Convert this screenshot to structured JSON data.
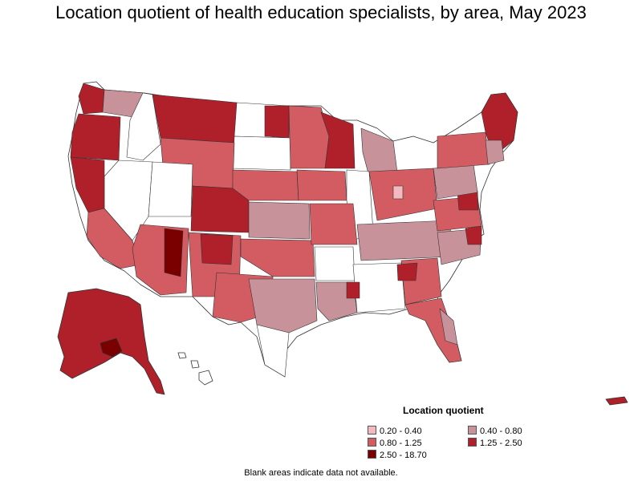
{
  "title": "Location quotient of health education specialists, by area, May 2023",
  "legend": {
    "title": "Location quotient",
    "items": [
      {
        "label": "0.20 - 0.40",
        "color": "#f4b8c0"
      },
      {
        "label": "0.40 - 0.80",
        "color": "#c8929a"
      },
      {
        "label": "0.80 - 1.25",
        "color": "#d25c62"
      },
      {
        "label": "1.25 - 2.50",
        "color": "#b0202a"
      },
      {
        "label": "2.50 - 18.70",
        "color": "#7a0000"
      }
    ]
  },
  "footnote": "Blank areas indicate data not available.",
  "no_data_color": "#ffffff"
}
